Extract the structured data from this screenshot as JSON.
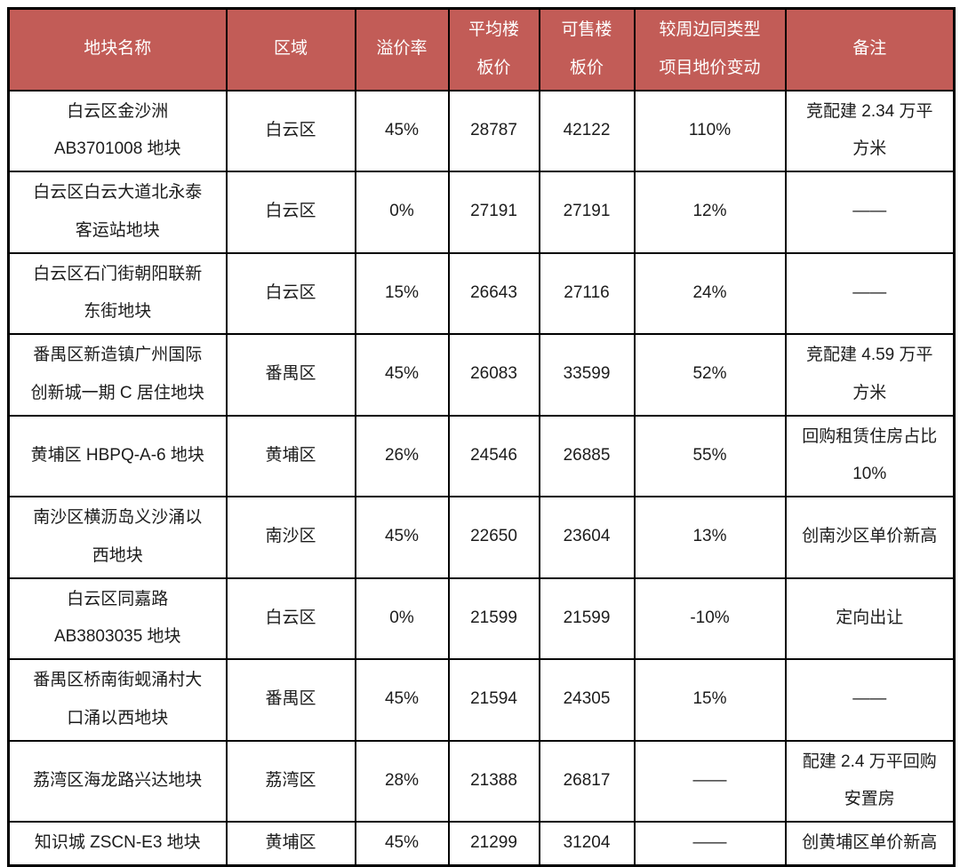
{
  "colors": {
    "header_bg": "#C25C57",
    "header_text": "#FFFFFF",
    "border": "#000000",
    "body_text": "#1C1C1C"
  },
  "table": {
    "columns": [
      "地块名称",
      "区域",
      "溢价率",
      "平均楼\n板价",
      "可售楼\n板价",
      "较周边同类型\n项目地价变动",
      "备注"
    ],
    "rows": [
      {
        "name": "白云区金沙洲\nAB3701008 地块",
        "district": "白云区",
        "premium_rate": "45%",
        "avg_floor_price": "28787",
        "sellable_floor_price": "42122",
        "price_change": "110%",
        "remark": "竞配建 2.34 万平\n方米"
      },
      {
        "name": "白云区白云大道北永泰\n客运站地块",
        "district": "白云区",
        "premium_rate": "0%",
        "avg_floor_price": "27191",
        "sellable_floor_price": "27191",
        "price_change": "12%",
        "remark": "——"
      },
      {
        "name": "白云区石门街朝阳联新\n东街地块",
        "district": "白云区",
        "premium_rate": "15%",
        "avg_floor_price": "26643",
        "sellable_floor_price": "27116",
        "price_change": "24%",
        "remark": "——"
      },
      {
        "name": "番禺区新造镇广州国际\n创新城一期 C 居住地块",
        "district": "番禺区",
        "premium_rate": "45%",
        "avg_floor_price": "26083",
        "sellable_floor_price": "33599",
        "price_change": "52%",
        "remark": "竞配建 4.59 万平\n方米"
      },
      {
        "name": "黄埔区 HBPQ-A-6 地块",
        "district": "黄埔区",
        "premium_rate": "26%",
        "avg_floor_price": "24546",
        "sellable_floor_price": "26885",
        "price_change": "55%",
        "remark": "回购租赁住房占比\n10%"
      },
      {
        "name": "南沙区横沥岛义沙涌以\n西地块",
        "district": "南沙区",
        "premium_rate": "45%",
        "avg_floor_price": "22650",
        "sellable_floor_price": "23604",
        "price_change": "13%",
        "remark": "创南沙区单价新高"
      },
      {
        "name": "白云区同嘉路\nAB3803035 地块",
        "district": "白云区",
        "premium_rate": "0%",
        "avg_floor_price": "21599",
        "sellable_floor_price": "21599",
        "price_change": "-10%",
        "remark": "定向出让"
      },
      {
        "name": "番禺区桥南街蚬涌村大\n口涌以西地块",
        "district": "番禺区",
        "premium_rate": "45%",
        "avg_floor_price": "21594",
        "sellable_floor_price": "24305",
        "price_change": "15%",
        "remark": "——"
      },
      {
        "name": "荔湾区海龙路兴达地块",
        "district": "荔湾区",
        "premium_rate": "28%",
        "avg_floor_price": "21388",
        "sellable_floor_price": "26817",
        "price_change": "——",
        "remark": "配建 2.4 万平回购\n安置房"
      },
      {
        "name": "知识城 ZSCN-E3 地块",
        "district": "黄埔区",
        "premium_rate": "45%",
        "avg_floor_price": "21299",
        "sellable_floor_price": "31204",
        "price_change": "——",
        "remark": "创黄埔区单价新高"
      }
    ]
  }
}
